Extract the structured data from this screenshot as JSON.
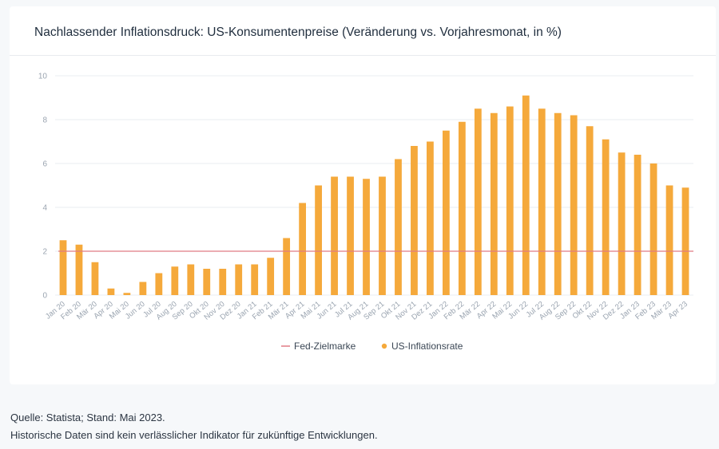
{
  "title": "Nachlassender Inflationsdruck: US-Konsumentenpreise (Veränderung vs. Vorjahresmonat, in %)",
  "footnotes": {
    "source": "Quelle: Statista; Stand: Mai 2023.",
    "disclaimer": "Historische Daten sind kein verlässlicher Indikator für zukünftige Entwicklungen."
  },
  "colors": {
    "bar": "#f5a93b",
    "target_line": "#e07b84",
    "grid": "#e9ecf0"
  },
  "chart_data": {
    "type": "bar",
    "title": "Nachlassender Inflationsdruck: US-Konsumentenpreise (Veränderung vs. Vorjahresmonat, in %)",
    "xlabel": "",
    "ylabel": "",
    "ylim": [
      0,
      10
    ],
    "yticks": [
      0,
      2,
      4,
      6,
      8,
      10
    ],
    "grid": true,
    "legend_position": "bottom",
    "categories": [
      "Jan 20",
      "Feb 20",
      "Mär 20",
      "Apr 20",
      "Mai 20",
      "Jun 20",
      "Jul 20",
      "Aug 20",
      "Sep 20",
      "Okt 20",
      "Nov 20",
      "Dez 20",
      "Jan 21",
      "Feb 21",
      "Mär 21",
      "Apr 21",
      "Mai 21",
      "Jun 21",
      "Jul 21",
      "Aug 21",
      "Sep 21",
      "Okt 21",
      "Nov 21",
      "Dez 21",
      "Jan 22",
      "Feb 22",
      "Mär 22",
      "Apr 22",
      "Mai 22",
      "Jun 22",
      "Jul 22",
      "Aug 22",
      "Sep 22",
      "Okt 22",
      "Nov 22",
      "Dez 22",
      "Jan 23",
      "Feb 23",
      "Mär 23",
      "Apr 23"
    ],
    "series": [
      {
        "name": "US-Inflationsrate",
        "type": "bar",
        "values": [
          2.5,
          2.3,
          1.5,
          0.3,
          0.1,
          0.6,
          1.0,
          1.3,
          1.4,
          1.2,
          1.2,
          1.4,
          1.4,
          1.7,
          2.6,
          4.2,
          5.0,
          5.4,
          5.4,
          5.3,
          5.4,
          6.2,
          6.8,
          7.0,
          7.5,
          7.9,
          8.5,
          8.3,
          8.6,
          9.1,
          8.5,
          8.3,
          8.2,
          7.7,
          7.1,
          6.5,
          6.4,
          6.0,
          5.0,
          4.9
        ]
      },
      {
        "name": "Fed-Zielmarke",
        "type": "line",
        "values": [
          2,
          2,
          2,
          2,
          2,
          2,
          2,
          2,
          2,
          2,
          2,
          2,
          2,
          2,
          2,
          2,
          2,
          2,
          2,
          2,
          2,
          2,
          2,
          2,
          2,
          2,
          2,
          2,
          2,
          2,
          2,
          2,
          2,
          2,
          2,
          2,
          2,
          2,
          2,
          2
        ]
      }
    ]
  }
}
